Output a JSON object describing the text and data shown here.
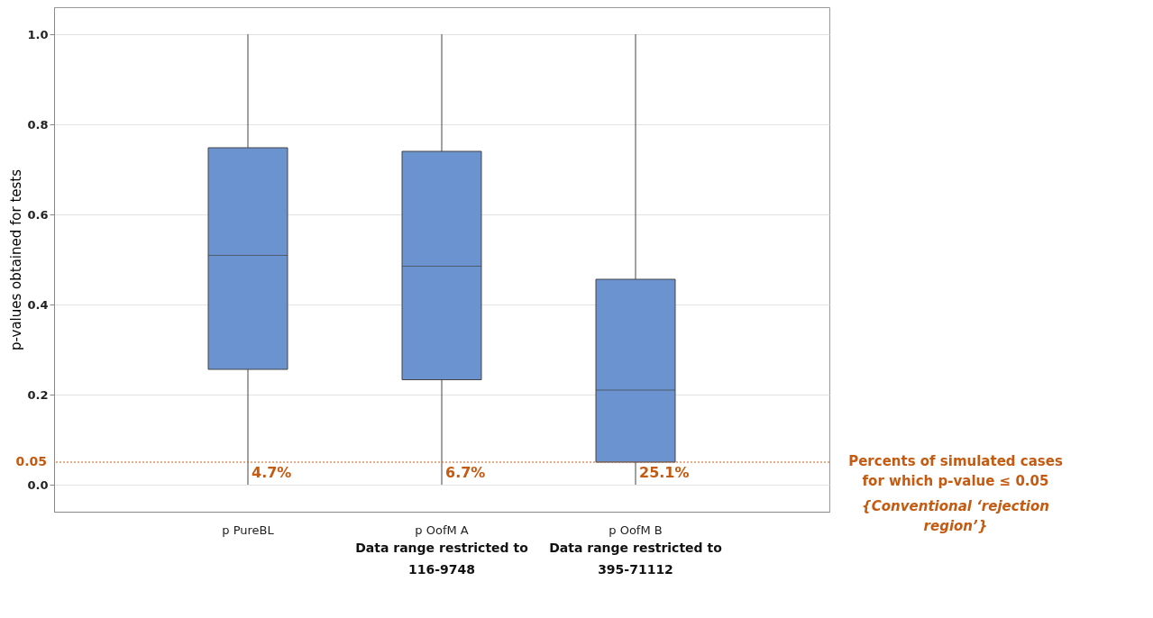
{
  "chart_data": {
    "type": "box",
    "ylabel": "p-values obtained for tests",
    "categories": [
      "p  PureBL",
      "p OofM A",
      "p OofM B"
    ],
    "boxes": [
      {
        "low": 0,
        "q1": 0.256,
        "median": 0.509,
        "q3": 0.748,
        "high": 1.0
      },
      {
        "low": 0,
        "q1": 0.233,
        "median": 0.485,
        "q3": 0.74,
        "high": 1.0
      },
      {
        "low": 0,
        "q1": 0.05,
        "median": 0.21,
        "q3": 0.456,
        "high": 1.0
      }
    ],
    "color": "#6a93d0",
    "ylim": [
      -0.06,
      1.06
    ],
    "yticks": [
      {
        "value": 0,
        "label": "0.0"
      },
      {
        "value": 0.2,
        "label": "0.2"
      },
      {
        "value": 0.4,
        "label": "0.4"
      },
      {
        "value": 0.6,
        "label": "0.6"
      },
      {
        "value": 0.8,
        "label": "0.8"
      },
      {
        "value": 1,
        "label": "1.0"
      }
    ],
    "grid": "y",
    "ref_lines": [
      {
        "axis": "y",
        "value": 0.05,
        "label": "0.05",
        "color": "#c55a11",
        "line_style": "dotted"
      }
    ],
    "annotations": [
      "4.7%",
      "6.7%",
      "25.1%",
      "Data range restricted to\n116-9748",
      "Data range restricted to\n395-71112",
      "Percents of simulated cases\nfor which p-value ≤ 0.05",
      "{Conventional ‘rejection\nregion’}"
    ]
  }
}
